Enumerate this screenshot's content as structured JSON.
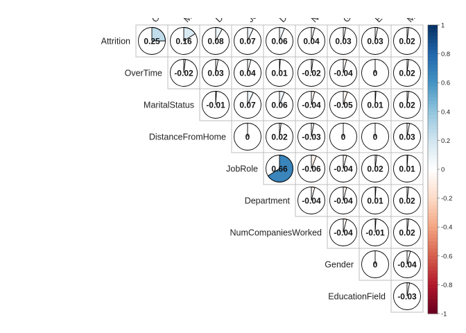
{
  "chart_data": {
    "type": "heatmap",
    "style": "corrplot-pie-upper",
    "title": "",
    "row_labels": [
      "Attrition",
      "OverTime",
      "MaritalStatus",
      "DistanceFromHome",
      "JobRole",
      "Department",
      "NumCompaniesWorked",
      "Gender",
      "EducationField"
    ],
    "col_labels": [
      "OverTime",
      "MaritalStatus",
      "DistanceFromHome",
      "JobRole",
      "Department",
      "NumCompaniesWorked",
      "Gender",
      "EducationField",
      "MonthlyIncome"
    ],
    "values": [
      [
        "0.25",
        "0.16",
        "0.08",
        "0.07",
        "0.06",
        "0.04",
        "0.03",
        "0.03",
        "0.02"
      ],
      [
        "-0.02",
        "0.03",
        "0.04",
        "0.01",
        "-0.02",
        "-0.04",
        "0",
        "0.02"
      ],
      [
        "-0.01",
        "0.07",
        "0.06",
        "-0.04",
        "-0.05",
        "0.01",
        "0.02"
      ],
      [
        "0",
        "0.02",
        "-0.03",
        "0",
        "0",
        "0.03"
      ],
      [
        "0.66",
        "-0.06",
        "-0.04",
        "0.02",
        "0.01"
      ],
      [
        "-0.04",
        "-0.04",
        "0.01",
        "0.02"
      ],
      [
        "-0.04",
        "-0.01",
        "0.02"
      ],
      [
        "0",
        "-0.04"
      ],
      [
        "-0.03"
      ]
    ],
    "colorbar": {
      "range": [
        -1,
        1
      ],
      "ticks": [
        "1",
        "0.8",
        "0.6",
        "0.4",
        "0.2",
        "0",
        "-0.2",
        "-0.4",
        "-0.6",
        "-0.8",
        "-1"
      ],
      "colors": [
        "#67001F",
        "#B2182B",
        "#D6604D",
        "#F4A582",
        "#FDDBC7",
        "#FFFFFF",
        "#D1E5F0",
        "#92C5DE",
        "#4393C3",
        "#2166AC",
        "#053061"
      ]
    },
    "grid": true,
    "legend": "right"
  }
}
